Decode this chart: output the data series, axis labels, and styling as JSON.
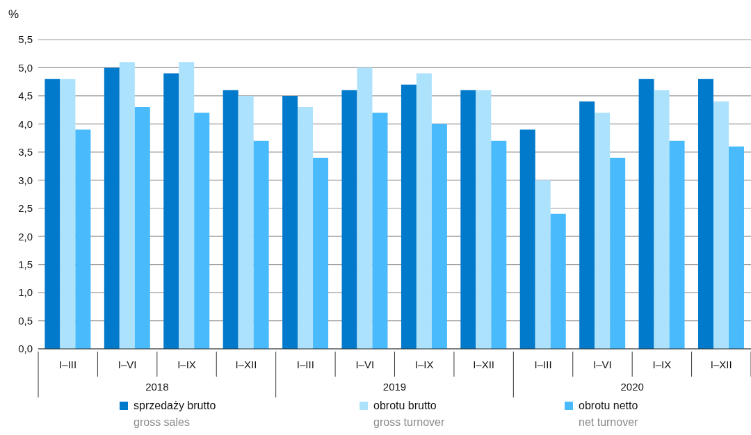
{
  "chart_data": {
    "type": "bar",
    "ylabel": "%",
    "categories": [
      "I–III",
      "I–VI",
      "I–IX",
      "I–XII",
      "I–III",
      "I–VI",
      "I–IX",
      "I–XII",
      "I–III",
      "I–VI",
      "I–IX",
      "I–XII"
    ],
    "series": [
      {
        "name": "sprzedaży brutto\ngross sales",
        "color": "#027acb",
        "values": [
          4.8,
          5.0,
          4.9,
          4.6,
          4.5,
          4.6,
          4.7,
          4.6,
          3.9,
          4.4,
          4.8,
          4.8
        ]
      },
      {
        "name": "obrotu brutto\ngross turnover",
        "color": "#ade2fd",
        "values": [
          4.8,
          5.1,
          5.1,
          4.5,
          4.3,
          5.0,
          4.9,
          4.6,
          3.0,
          4.2,
          4.6,
          4.4
        ]
      },
      {
        "name": "obrotu netto\nnet turnover",
        "color": "#49bbfd",
        "values": [
          3.9,
          4.3,
          4.2,
          3.7,
          3.4,
          4.2,
          4.0,
          3.7,
          2.4,
          3.4,
          3.7,
          3.6
        ]
      }
    ],
    "annotations": [
      "2018",
      "2019",
      "2020"
    ],
    "ylim": [
      0,
      5.5
    ],
    "yticks": [
      {
        "value": 0,
        "label": "0,0"
      },
      {
        "value": 0.5,
        "label": "0,5"
      },
      {
        "value": 1,
        "label": "1,0"
      },
      {
        "value": 1.5,
        "label": "1,5"
      },
      {
        "value": 2,
        "label": "2,0"
      },
      {
        "value": 2.5,
        "label": "2,5"
      },
      {
        "value": 3,
        "label": "3,0"
      },
      {
        "value": 3.5,
        "label": "3,5"
      },
      {
        "value": 4,
        "label": "4,0"
      },
      {
        "value": 4.5,
        "label": "4,5"
      },
      {
        "value": 5,
        "label": "5,0"
      },
      {
        "value": 5.5,
        "label": "5,5"
      }
    ],
    "grid": "y",
    "legend": "bottom"
  }
}
